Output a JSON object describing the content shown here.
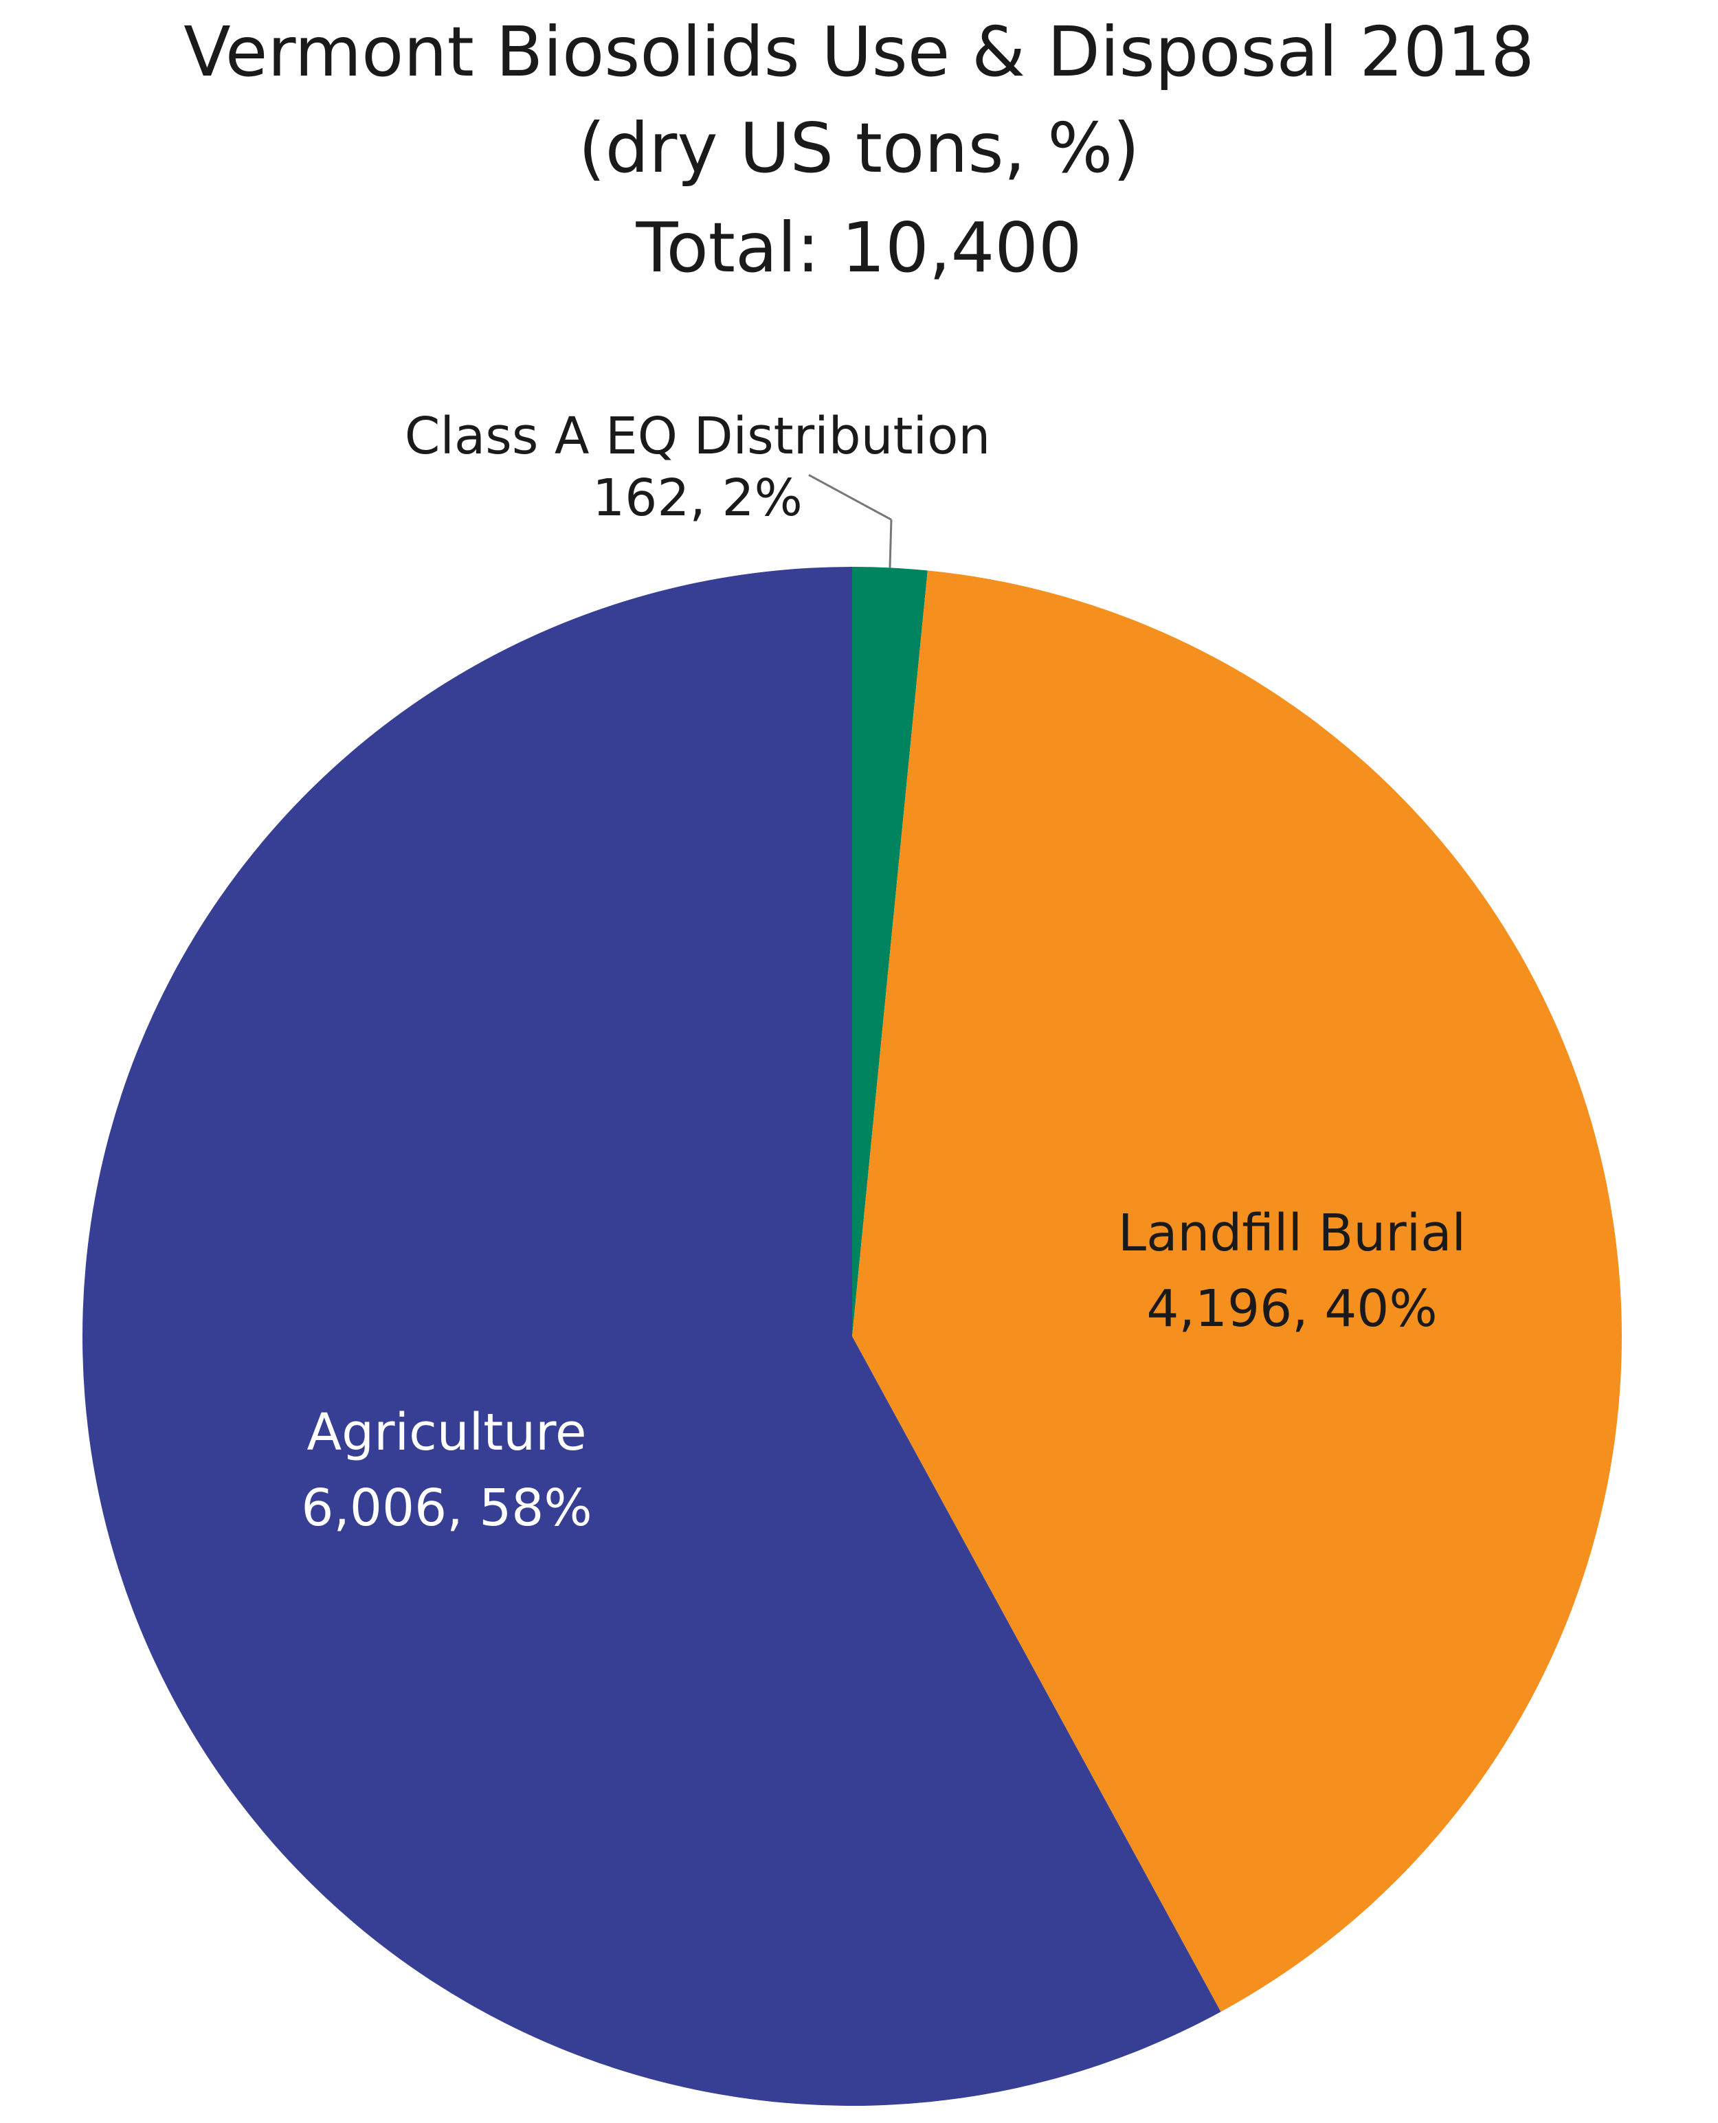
{
  "chart_data": {
    "type": "pie",
    "title": "Vermont Biosolids Use & Disposal 2018",
    "subtitle": "(dry US tons, %)",
    "total_label": "Total: 10,400",
    "slices": [
      {
        "name": "Class A EQ Distribution",
        "value": 162,
        "percent": 2,
        "value_text": "162, 2%",
        "color": "#00845f",
        "label_color": "#1a1a1a"
      },
      {
        "name": "Landfill Burial",
        "value": 4196,
        "percent": 40,
        "value_text": "4,196, 40%",
        "color": "#f58f1e",
        "label_color": "#1a1a1a"
      },
      {
        "name": "Agriculture",
        "value": 6006,
        "percent": 58,
        "value_text": "6,006, 58%",
        "color": "#373f95",
        "label_color": "#ffffff"
      }
    ],
    "start_angle_deg": 0,
    "direction": "clockwise",
    "legend": "none"
  }
}
